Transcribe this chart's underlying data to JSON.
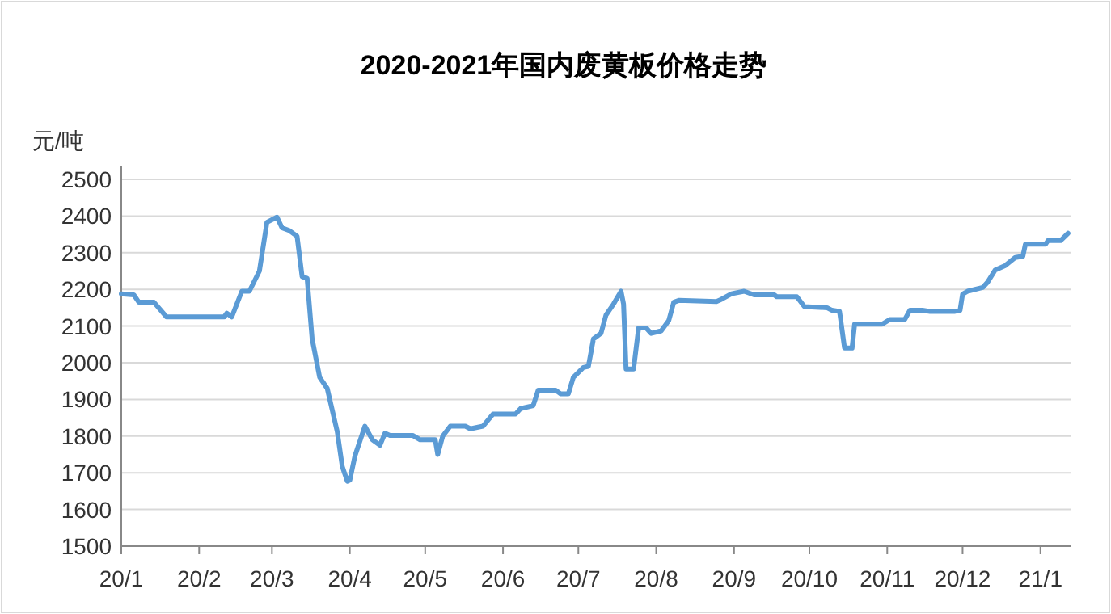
{
  "chart_data": {
    "type": "line",
    "title": "2020-2021年国内废黄板价格走势",
    "ylabel": "元/吨",
    "x": [
      "2020-01-01",
      "2020-01-06",
      "2020-01-08",
      "2020-01-14",
      "2020-01-19",
      "2020-02-11",
      "2020-02-12",
      "2020-02-14",
      "2020-02-18",
      "2020-02-21",
      "2020-02-25",
      "2020-02-28",
      "2020-03-03",
      "2020-03-05",
      "2020-03-08",
      "2020-03-11",
      "2020-03-13",
      "2020-03-15",
      "2020-03-17",
      "2020-03-20",
      "2020-03-23",
      "2020-03-27",
      "2020-03-29",
      "2020-03-31",
      "2020-04-01",
      "2020-04-03",
      "2020-04-07",
      "2020-04-10",
      "2020-04-13",
      "2020-04-15",
      "2020-04-17",
      "2020-04-26",
      "2020-04-29",
      "2020-05-05",
      "2020-05-06",
      "2020-05-08",
      "2020-05-11",
      "2020-05-17",
      "2020-05-19",
      "2020-05-24",
      "2020-05-28",
      "2020-06-06",
      "2020-06-08",
      "2020-06-13",
      "2020-06-15",
      "2020-06-22",
      "2020-06-24",
      "2020-06-27",
      "2020-06-29",
      "2020-07-03",
      "2020-07-05",
      "2020-07-07",
      "2020-07-10",
      "2020-07-12",
      "2020-07-15",
      "2020-07-18",
      "2020-07-19",
      "2020-07-20",
      "2020-07-23",
      "2020-07-25",
      "2020-07-28",
      "2020-07-30",
      "2020-08-03",
      "2020-08-06",
      "2020-08-08",
      "2020-08-10",
      "2020-08-25",
      "2020-08-27",
      "2020-08-31",
      "2020-09-05",
      "2020-09-09",
      "2020-09-17",
      "2020-09-18",
      "2020-09-26",
      "2020-09-29",
      "2020-10-08",
      "2020-10-10",
      "2020-10-13",
      "2020-10-15",
      "2020-10-18",
      "2020-10-19",
      "2020-10-30",
      "2020-11-02",
      "2020-11-08",
      "2020-11-10",
      "2020-11-15",
      "2020-11-18",
      "2020-11-28",
      "2020-11-30",
      "2020-12-01",
      "2020-12-03",
      "2020-12-09",
      "2020-12-11",
      "2020-12-14",
      "2020-12-18",
      "2020-12-22",
      "2020-12-25",
      "2020-12-26",
      "2021-01-03",
      "2021-01-04",
      "2021-01-09",
      "2021-01-12"
    ],
    "series": [
      {
        "color": "#5b9bd5",
        "values": [
          2188,
          2185,
          2165,
          2165,
          2125,
          2125,
          2135,
          2125,
          2195,
          2195,
          2250,
          2383,
          2397,
          2368,
          2360,
          2345,
          2235,
          2230,
          2065,
          1960,
          1930,
          1812,
          1717,
          1677,
          1680,
          1745,
          1827,
          1790,
          1775,
          1808,
          1802,
          1802,
          1790,
          1790,
          1750,
          1800,
          1827,
          1827,
          1820,
          1827,
          1860,
          1860,
          1875,
          1883,
          1925,
          1925,
          1915,
          1915,
          1960,
          1987,
          1990,
          2065,
          2080,
          2130,
          2160,
          2195,
          2160,
          1983,
          1983,
          2095,
          2095,
          2080,
          2087,
          2115,
          2165,
          2170,
          2167,
          2173,
          2188,
          2195,
          2185,
          2185,
          2180,
          2180,
          2153,
          2150,
          2143,
          2140,
          2040,
          2040,
          2105,
          2105,
          2118,
          2118,
          2143,
          2143,
          2140,
          2140,
          2143,
          2187,
          2195,
          2205,
          2220,
          2253,
          2265,
          2287,
          2290,
          2323,
          2323,
          2333,
          2333,
          2353
        ]
      }
    ],
    "xlim": [
      "2020-01-01",
      "2021-01-13"
    ],
    "xticks": [
      {
        "value": "2020-01-01",
        "label": "20/1"
      },
      {
        "value": "2020-02-01",
        "label": "20/2"
      },
      {
        "value": "2020-03-01",
        "label": "20/3"
      },
      {
        "value": "2020-04-01",
        "label": "20/4"
      },
      {
        "value": "2020-05-01",
        "label": "20/5"
      },
      {
        "value": "2020-06-01",
        "label": "20/6"
      },
      {
        "value": "2020-07-01",
        "label": "20/7"
      },
      {
        "value": "2020-08-01",
        "label": "20/8"
      },
      {
        "value": "2020-09-01",
        "label": "20/9"
      },
      {
        "value": "2020-10-01",
        "label": "20/10"
      },
      {
        "value": "2020-11-01",
        "label": "20/11"
      },
      {
        "value": "2020-12-01",
        "label": "20/12"
      },
      {
        "value": "2021-01-01",
        "label": "21/1"
      }
    ],
    "ylim": [
      1500,
      2500
    ],
    "yticks": [
      1500,
      1600,
      1700,
      1800,
      1900,
      2000,
      2100,
      2200,
      2300,
      2400,
      2500
    ],
    "grid": "y"
  }
}
